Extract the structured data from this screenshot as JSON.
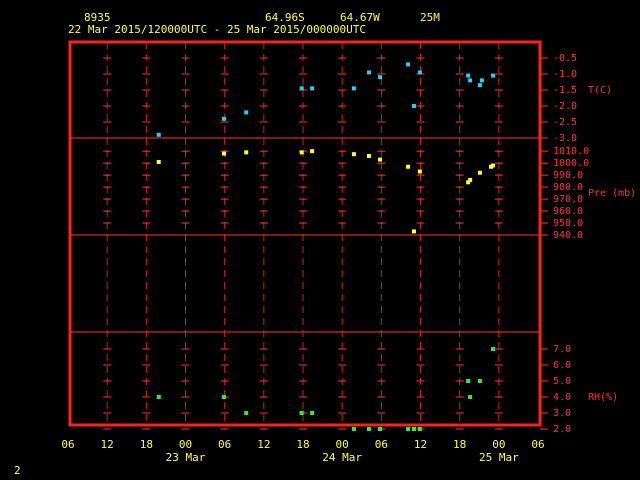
{
  "header": {
    "station": "8935",
    "lat": "64.96S",
    "lon": "64.67W",
    "elev": "25M",
    "period": "22 Mar 2015/120000UTC - 25 Mar 2015/000000UTC"
  },
  "chart_data": [
    {
      "type": "scatter",
      "y_label": "T(C)",
      "color": "#33ccee",
      "xlim": [
        0,
        72
      ],
      "x": [
        13.9,
        23.9,
        27.3,
        35.8,
        37.4,
        43.8,
        46.1,
        47.8,
        52.1,
        53.0,
        53.9,
        61.3,
        61.6,
        63.1,
        63.4,
        65.1
      ],
      "values": [
        -2.9,
        -2.4,
        -2.2,
        -1.45,
        -1.45,
        -1.45,
        -0.95,
        -1.1,
        -0.7,
        -2.0,
        -0.95,
        -1.05,
        -1.2,
        -1.35,
        -1.2,
        -1.05
      ],
      "ylim": [
        -3.0,
        0.0
      ],
      "yticks": [
        -0.5,
        {
          "value": -1.0,
          "label": "-1.0"
        },
        -1.5,
        {
          "value": -2.0,
          "label": "-2.0"
        },
        -2.5,
        {
          "value": -3.0,
          "label": "-3.0"
        }
      ]
    },
    {
      "type": "scatter",
      "y_label": "Pre (mb)",
      "color": "#ffff33",
      "xlim": [
        0,
        72
      ],
      "x": [
        13.9,
        23.9,
        27.3,
        35.8,
        37.4,
        43.8,
        46.1,
        47.8,
        52.1,
        53.0,
        53.9,
        61.3,
        61.6,
        63.1,
        64.8,
        65.1
      ],
      "values": [
        1001,
        1008,
        1009,
        1009,
        1010,
        1007.5,
        1006,
        1003,
        997,
        943,
        993,
        984,
        986,
        992,
        997,
        998
      ],
      "ylim": [
        940,
        1021
      ],
      "yticks": [
        {
          "value": 1010,
          "label": "1010.0"
        },
        {
          "value": 1000,
          "label": "1000.0"
        },
        {
          "value": 990,
          "label": "990.0"
        },
        {
          "value": 980,
          "label": "980.0"
        },
        {
          "value": 970,
          "label": "970.0"
        },
        {
          "value": 960,
          "label": "960.0"
        },
        {
          "value": 950,
          "label": "950.0"
        },
        {
          "value": 940,
          "label": "940.0"
        }
      ]
    },
    {
      "type": "scatter",
      "y_label": "RH(%)",
      "color": "#33ee33",
      "xlim": [
        0,
        72
      ],
      "x": [
        13.9,
        23.9,
        27.3,
        35.8,
        37.4,
        43.8,
        46.1,
        47.8,
        52.1,
        53.0,
        53.9,
        61.3,
        61.6,
        63.1,
        65.1
      ],
      "values": [
        4,
        4,
        3,
        3,
        3,
        2,
        2,
        2,
        2,
        2,
        2,
        5,
        4,
        5,
        7
      ],
      "ylim": [
        2,
        8
      ],
      "yticks": [
        {
          "value": 7,
          "label": "7.0"
        },
        {
          "value": 6,
          "label": "6.0"
        },
        {
          "value": 5,
          "label": "5.0"
        },
        {
          "value": 4,
          "label": "4.0"
        },
        {
          "value": 3,
          "label": "3.0"
        },
        {
          "value": 2,
          "label": "2.0"
        }
      ],
      "xticks": [
        {
          "value": 0,
          "label": "06"
        },
        {
          "value": 6,
          "label": "12"
        },
        {
          "value": 12,
          "label": "18"
        },
        {
          "value": 18,
          "label": "00"
        },
        {
          "value": 24,
          "label": "06"
        },
        {
          "value": 30,
          "label": "12"
        },
        {
          "value": 36,
          "label": "18"
        },
        {
          "value": 42,
          "label": "00"
        },
        {
          "value": 48,
          "label": "06"
        },
        {
          "value": 54,
          "label": "12"
        },
        {
          "value": 60,
          "label": "18"
        },
        {
          "value": 66,
          "label": "00"
        },
        {
          "value": 72,
          "label": "06"
        }
      ],
      "date_labels": [
        {
          "value": 18,
          "label": "23 Mar"
        },
        {
          "value": 42,
          "label": "24 Mar"
        },
        {
          "value": 66,
          "label": "25 Mar"
        }
      ]
    }
  ],
  "footer": "2"
}
